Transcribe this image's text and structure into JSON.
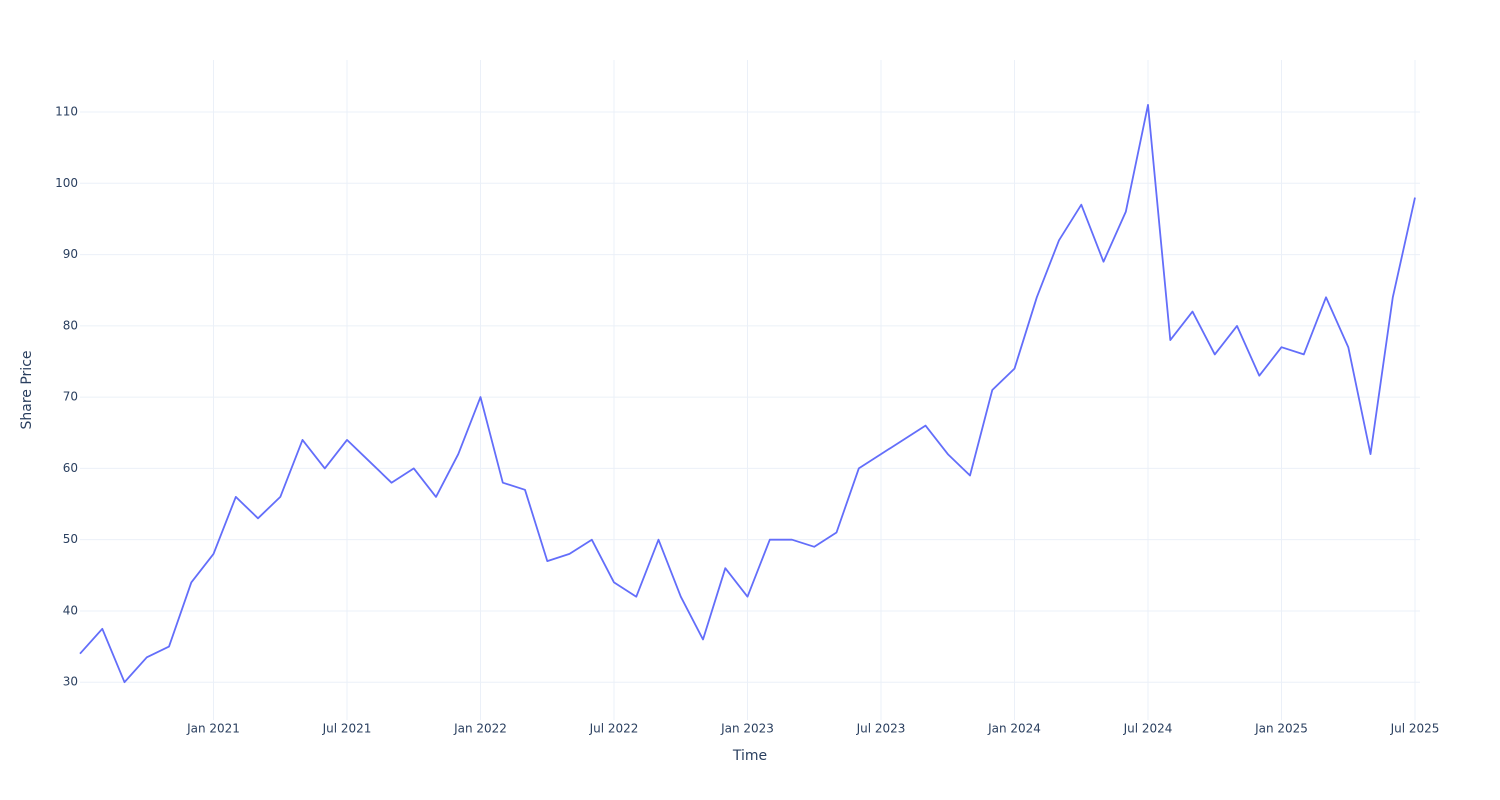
{
  "chart_data": {
    "type": "line",
    "x_label": "Time",
    "y_label": "Share Price",
    "x": [
      "2020-07",
      "2020-08",
      "2020-09",
      "2020-10",
      "2020-11",
      "2020-12",
      "2021-01",
      "2021-02",
      "2021-03",
      "2021-04",
      "2021-05",
      "2021-06",
      "2021-07",
      "2021-08",
      "2021-09",
      "2021-10",
      "2021-11",
      "2021-12",
      "2022-01",
      "2022-02",
      "2022-03",
      "2022-04",
      "2022-05",
      "2022-06",
      "2022-07",
      "2022-08",
      "2022-09",
      "2022-10",
      "2022-11",
      "2022-12",
      "2023-01",
      "2023-02",
      "2023-03",
      "2023-04",
      "2023-05",
      "2023-06",
      "2023-07",
      "2023-08",
      "2023-09",
      "2023-10",
      "2023-11",
      "2023-12",
      "2024-01",
      "2024-02",
      "2024-03",
      "2024-04",
      "2024-05",
      "2024-06",
      "2024-07",
      "2024-08",
      "2024-09",
      "2024-10",
      "2024-11",
      "2024-12",
      "2025-01",
      "2025-02",
      "2025-03",
      "2025-04",
      "2025-05",
      "2025-06",
      "2025-07"
    ],
    "series": [
      {
        "color": "#636efa",
        "values": [
          34,
          37.5,
          30,
          33.5,
          35,
          44,
          48,
          56,
          53,
          56,
          64,
          60,
          64,
          61,
          58,
          60,
          56,
          62,
          70,
          58,
          57,
          47,
          48,
          50,
          44,
          42,
          50,
          42,
          36,
          46,
          42,
          50,
          50,
          49,
          51,
          60,
          62,
          64,
          66,
          62,
          59,
          71,
          74,
          84,
          92,
          97,
          89,
          96,
          111,
          78,
          82,
          76,
          80,
          73,
          77,
          76,
          84,
          77,
          62,
          84,
          98
        ]
      }
    ],
    "xlim": [
      "2020-07",
      "2025-07"
    ],
    "xticks": [
      {
        "value": "2021-01",
        "label": "Jan 2021"
      },
      {
        "value": "2021-07",
        "label": "Jul 2021"
      },
      {
        "value": "2022-01",
        "label": "Jan 2022"
      },
      {
        "value": "2022-07",
        "label": "Jul 2022"
      },
      {
        "value": "2023-01",
        "label": "Jan 2023"
      },
      {
        "value": "2023-07",
        "label": "Jul 2023"
      },
      {
        "value": "2024-01",
        "label": "Jan 2024"
      },
      {
        "value": "2024-07",
        "label": "Jul 2024"
      },
      {
        "value": "2025-01",
        "label": "Jan 2025"
      },
      {
        "value": "2025-07",
        "label": "Jul 2025"
      }
    ],
    "ylim": [
      24.7,
      117.3
    ],
    "yticks": [
      30,
      40,
      50,
      60,
      70,
      80,
      90,
      100,
      110
    ],
    "grid": true
  }
}
